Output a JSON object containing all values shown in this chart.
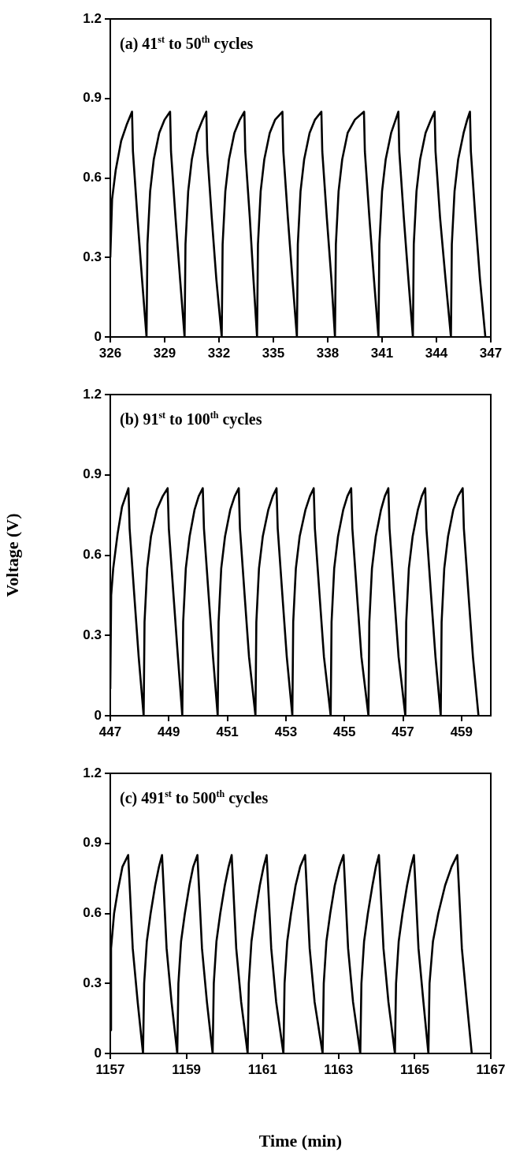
{
  "chart_data": [
    {
      "type": "line",
      "annotations": [
        "(a) 41$^{st}$ to 50$^{th}$ cycles"
      ],
      "xlim": [
        326,
        347
      ],
      "xticks": [
        326,
        329,
        332,
        335,
        338,
        341,
        344,
        347
      ],
      "ylim": [
        0,
        1.2
      ],
      "yticks": [
        0,
        0.3,
        0.6,
        0.9,
        1.2
      ],
      "grid": false,
      "legend": false,
      "marker": "none",
      "line_style": "solid",
      "series": [
        {
          "color": "#000000",
          "x": [
            326,
            326.1,
            326.3,
            326.6,
            326.9,
            327.2,
            327.25,
            327.5,
            327.75,
            328.0,
            328.05,
            328.2,
            328.4,
            328.7,
            329.0,
            329.3,
            329.35,
            329.6,
            329.85,
            330.1,
            330.15,
            330.3,
            330.5,
            330.8,
            331.1,
            331.3,
            331.35,
            331.6,
            331.85,
            332.15,
            332.2,
            332.35,
            332.55,
            332.85,
            333.15,
            333.4,
            333.45,
            333.7,
            333.9,
            334.1,
            334.15,
            334.3,
            334.5,
            334.8,
            335.1,
            335.5,
            335.55,
            335.8,
            336.05,
            336.3,
            336.35,
            336.5,
            336.7,
            337.0,
            337.3,
            337.65,
            337.7,
            337.95,
            338.2,
            338.4,
            338.45,
            338.6,
            338.8,
            339.1,
            339.5,
            340.0,
            340.05,
            340.3,
            340.55,
            340.8,
            340.85,
            341.0,
            341.2,
            341.5,
            341.75,
            341.9,
            341.95,
            342.2,
            342.45,
            342.7,
            342.75,
            342.9,
            343.1,
            343.4,
            343.7,
            343.9,
            343.95,
            344.2,
            344.5,
            344.8,
            344.85,
            345.0,
            345.2,
            345.5,
            345.7,
            345.85,
            345.9,
            346.15,
            346.4,
            346.7
          ],
          "values": [
            0.3,
            0.52,
            0.63,
            0.74,
            0.8,
            0.85,
            0.7,
            0.45,
            0.22,
            0,
            0.35,
            0.55,
            0.67,
            0.77,
            0.82,
            0.85,
            0.7,
            0.45,
            0.22,
            0,
            0.35,
            0.55,
            0.67,
            0.77,
            0.82,
            0.85,
            0.7,
            0.45,
            0.22,
            0,
            0.35,
            0.55,
            0.67,
            0.77,
            0.82,
            0.85,
            0.7,
            0.45,
            0.22,
            0,
            0.35,
            0.55,
            0.67,
            0.77,
            0.82,
            0.85,
            0.7,
            0.45,
            0.22,
            0,
            0.35,
            0.55,
            0.67,
            0.77,
            0.82,
            0.85,
            0.7,
            0.45,
            0.22,
            0,
            0.35,
            0.55,
            0.67,
            0.77,
            0.82,
            0.85,
            0.7,
            0.45,
            0.22,
            0,
            0.35,
            0.55,
            0.67,
            0.77,
            0.82,
            0.85,
            0.7,
            0.45,
            0.22,
            0,
            0.35,
            0.55,
            0.67,
            0.77,
            0.82,
            0.85,
            0.7,
            0.45,
            0.22,
            0,
            0.35,
            0.55,
            0.67,
            0.77,
            0.82,
            0.85,
            0.7,
            0.45,
            0.22,
            0
          ]
        }
      ]
    },
    {
      "type": "line",
      "ylabel": "Voltage (V)",
      "annotations": [
        "(b) 91$^{st}$ to 100$^{th}$ cycles"
      ],
      "xlim": [
        447,
        460
      ],
      "xticks": [
        447,
        449,
        451,
        453,
        455,
        457,
        459
      ],
      "ylim": [
        0,
        1.2
      ],
      "yticks": [
        0,
        0.3,
        0.6,
        0.9,
        1.2
      ],
      "grid": false,
      "legend": false,
      "marker": "none",
      "line_style": "solid",
      "series": [
        {
          "color": "#000000",
          "x": [
            447,
            447.03,
            447.1,
            447.25,
            447.4,
            447.62,
            447.66,
            447.82,
            447.97,
            448.14,
            448.17,
            448.26,
            448.39,
            448.59,
            448.79,
            448.96,
            449.0,
            449.16,
            449.31,
            449.46,
            449.49,
            449.58,
            449.71,
            449.88,
            450.02,
            450.16,
            450.2,
            450.36,
            450.51,
            450.67,
            450.7,
            450.79,
            450.92,
            451.1,
            451.25,
            451.39,
            451.43,
            451.59,
            451.74,
            451.96,
            451.99,
            452.08,
            452.21,
            452.4,
            452.55,
            452.68,
            452.72,
            452.88,
            453.03,
            453.22,
            453.25,
            453.34,
            453.47,
            453.67,
            453.82,
            453.95,
            453.99,
            454.15,
            454.3,
            454.53,
            454.56,
            454.65,
            454.78,
            454.96,
            455.1,
            455.23,
            455.27,
            455.43,
            455.58,
            455.82,
            455.85,
            455.94,
            456.07,
            456.25,
            456.38,
            456.5,
            456.54,
            456.7,
            456.85,
            457.08,
            457.11,
            457.2,
            457.33,
            457.51,
            457.64,
            457.76,
            457.8,
            457.96,
            458.11,
            458.29,
            458.32,
            458.41,
            458.54,
            458.72,
            458.88,
            459.04,
            459.08,
            459.24,
            459.39,
            459.58
          ],
          "values": [
            0.1,
            0.45,
            0.55,
            0.68,
            0.78,
            0.85,
            0.7,
            0.45,
            0.22,
            0,
            0.35,
            0.55,
            0.67,
            0.77,
            0.82,
            0.85,
            0.7,
            0.45,
            0.22,
            0,
            0.35,
            0.55,
            0.67,
            0.77,
            0.82,
            0.85,
            0.7,
            0.45,
            0.22,
            0,
            0.35,
            0.55,
            0.67,
            0.77,
            0.82,
            0.85,
            0.7,
            0.45,
            0.22,
            0,
            0.35,
            0.55,
            0.67,
            0.77,
            0.82,
            0.85,
            0.7,
            0.45,
            0.22,
            0,
            0.35,
            0.55,
            0.67,
            0.77,
            0.82,
            0.85,
            0.7,
            0.45,
            0.22,
            0,
            0.35,
            0.55,
            0.67,
            0.77,
            0.82,
            0.85,
            0.7,
            0.45,
            0.22,
            0,
            0.35,
            0.55,
            0.67,
            0.77,
            0.82,
            0.85,
            0.7,
            0.45,
            0.22,
            0,
            0.35,
            0.55,
            0.67,
            0.77,
            0.82,
            0.85,
            0.7,
            0.45,
            0.22,
            0,
            0.35,
            0.55,
            0.67,
            0.77,
            0.82,
            0.85,
            0.7,
            0.45,
            0.22,
            0
          ]
        }
      ]
    },
    {
      "type": "line",
      "xlabel": "Time (min)",
      "annotations": [
        "(c) 491$^{st}$ to 500$^{th}$ cycles"
      ],
      "xlim": [
        1157,
        1167
      ],
      "xticks": [
        1157,
        1159,
        1161,
        1163,
        1165,
        1167
      ],
      "ylim": [
        0,
        1.2
      ],
      "yticks": [
        0,
        0.3,
        0.6,
        0.9,
        1.2
      ],
      "grid": false,
      "legend": false,
      "marker": "none",
      "line_style": "solid",
      "series": [
        {
          "color": "#000000",
          "x": [
            1157,
            1157.02,
            1157.1,
            1157.2,
            1157.32,
            1157.47,
            1157.5,
            1157.59,
            1157.72,
            1157.86,
            1157.89,
            1157.96,
            1158.06,
            1158.18,
            1158.28,
            1158.36,
            1158.39,
            1158.48,
            1158.61,
            1158.76,
            1158.79,
            1158.86,
            1158.96,
            1159.08,
            1159.18,
            1159.29,
            1159.32,
            1159.41,
            1159.54,
            1159.69,
            1159.72,
            1159.79,
            1159.89,
            1160.01,
            1160.11,
            1160.19,
            1160.22,
            1160.31,
            1160.44,
            1160.61,
            1160.64,
            1160.71,
            1160.81,
            1160.93,
            1161.03,
            1161.11,
            1161.14,
            1161.23,
            1161.36,
            1161.55,
            1161.58,
            1161.65,
            1161.75,
            1161.87,
            1161.99,
            1162.12,
            1162.15,
            1162.24,
            1162.37,
            1162.58,
            1162.61,
            1162.68,
            1162.78,
            1162.9,
            1163.02,
            1163.13,
            1163.16,
            1163.25,
            1163.38,
            1163.57,
            1163.6,
            1163.67,
            1163.77,
            1163.89,
            1163.98,
            1164.06,
            1164.09,
            1164.18,
            1164.31,
            1164.48,
            1164.51,
            1164.58,
            1164.68,
            1164.8,
            1164.9,
            1164.98,
            1165.01,
            1165.1,
            1165.23,
            1165.36,
            1165.39,
            1165.48,
            1165.62,
            1165.8,
            1165.97,
            1166.12,
            1166.15,
            1166.24,
            1166.37,
            1166.5
          ],
          "values": [
            0.1,
            0.45,
            0.6,
            0.7,
            0.8,
            0.85,
            0.75,
            0.45,
            0.22,
            0,
            0.3,
            0.48,
            0.6,
            0.72,
            0.8,
            0.85,
            0.75,
            0.45,
            0.22,
            0,
            0.3,
            0.48,
            0.6,
            0.72,
            0.8,
            0.85,
            0.75,
            0.45,
            0.22,
            0,
            0.3,
            0.48,
            0.6,
            0.72,
            0.8,
            0.85,
            0.75,
            0.45,
            0.22,
            0,
            0.3,
            0.48,
            0.6,
            0.72,
            0.8,
            0.85,
            0.75,
            0.45,
            0.22,
            0,
            0.3,
            0.48,
            0.6,
            0.72,
            0.8,
            0.85,
            0.75,
            0.45,
            0.22,
            0,
            0.3,
            0.48,
            0.6,
            0.72,
            0.8,
            0.85,
            0.75,
            0.45,
            0.22,
            0,
            0.3,
            0.48,
            0.6,
            0.72,
            0.8,
            0.85,
            0.75,
            0.45,
            0.22,
            0,
            0.3,
            0.48,
            0.6,
            0.72,
            0.8,
            0.85,
            0.75,
            0.45,
            0.22,
            0,
            0.3,
            0.48,
            0.6,
            0.72,
            0.8,
            0.85,
            0.75,
            0.45,
            0.22,
            0
          ]
        }
      ]
    }
  ]
}
